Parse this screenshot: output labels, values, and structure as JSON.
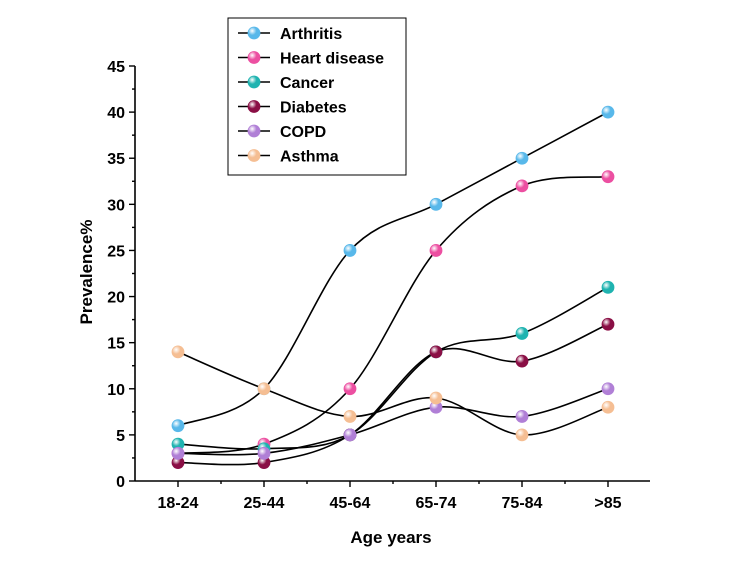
{
  "chart_data": {
    "type": "line",
    "title": "",
    "xlabel": "Age years",
    "ylabel": "Prevalence%",
    "categories": [
      "18-24",
      "25-44",
      "45-64",
      "65-74",
      "75-84",
      ">85"
    ],
    "ylim": [
      0,
      45
    ],
    "yticks": [
      0,
      5,
      10,
      15,
      20,
      25,
      30,
      35,
      40,
      45
    ],
    "grid": false,
    "legend_position": "top-left",
    "series": [
      {
        "name": "Arthritis",
        "color": "#58b8ea",
        "values": [
          6,
          10,
          25,
          30,
          35,
          40
        ]
      },
      {
        "name": "Heart disease",
        "color": "#ec4fa1",
        "values": [
          3,
          4,
          10,
          25,
          32,
          33
        ]
      },
      {
        "name": "Cancer",
        "color": "#1fb3b0",
        "values": [
          4,
          3.5,
          5,
          14,
          16,
          21
        ]
      },
      {
        "name": "Diabetes",
        "color": "#8a0f45",
        "values": [
          2,
          2,
          5,
          14,
          13,
          17
        ]
      },
      {
        "name": "COPD",
        "color": "#b07fd6",
        "values": [
          3,
          3,
          5,
          8,
          7,
          10
        ]
      },
      {
        "name": "Asthma",
        "color": "#f5be93",
        "values": [
          14,
          10,
          7,
          9,
          5,
          8
        ]
      }
    ]
  }
}
